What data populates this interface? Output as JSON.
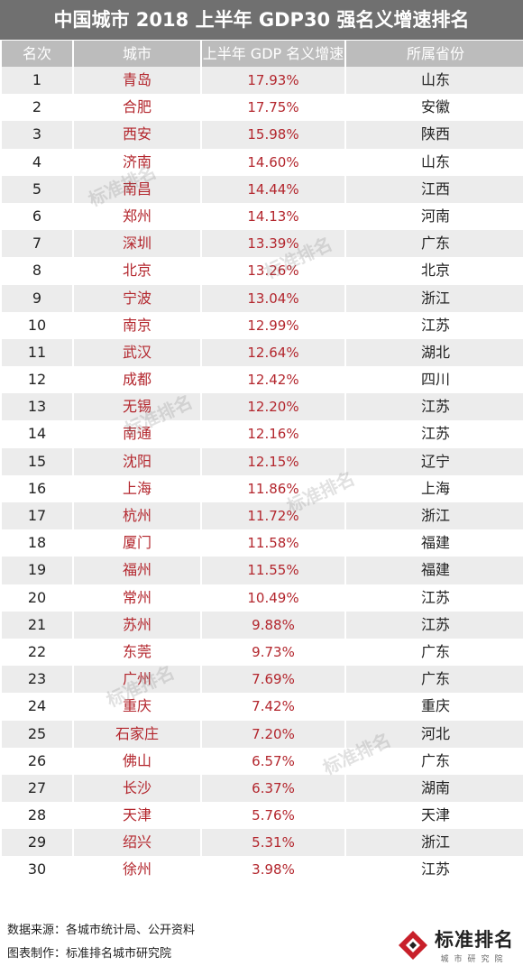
{
  "title": "中国城市 2018 上半年 GDP30 强名义增速排名",
  "headers": [
    "名次",
    "城市",
    "上半年 GDP 名义增速",
    "所属省份"
  ],
  "rows": [
    {
      "rank": "1",
      "city": "青岛",
      "rate": "17.93%",
      "province": "山东"
    },
    {
      "rank": "2",
      "city": "合肥",
      "rate": "17.75%",
      "province": "安徽"
    },
    {
      "rank": "3",
      "city": "西安",
      "rate": "15.98%",
      "province": "陕西"
    },
    {
      "rank": "4",
      "city": "济南",
      "rate": "14.60%",
      "province": "山东"
    },
    {
      "rank": "5",
      "city": "南昌",
      "rate": "14.44%",
      "province": "江西"
    },
    {
      "rank": "6",
      "city": "郑州",
      "rate": "14.13%",
      "province": "河南"
    },
    {
      "rank": "7",
      "city": "深圳",
      "rate": "13.39%",
      "province": "广东"
    },
    {
      "rank": "8",
      "city": "北京",
      "rate": "13.26%",
      "province": "北京"
    },
    {
      "rank": "9",
      "city": "宁波",
      "rate": "13.04%",
      "province": "浙江"
    },
    {
      "rank": "10",
      "city": "南京",
      "rate": "12.99%",
      "province": "江苏"
    },
    {
      "rank": "11",
      "city": "武汉",
      "rate": "12.64%",
      "province": "湖北"
    },
    {
      "rank": "12",
      "city": "成都",
      "rate": "12.42%",
      "province": "四川"
    },
    {
      "rank": "13",
      "city": "无锡",
      "rate": "12.20%",
      "province": "江苏"
    },
    {
      "rank": "14",
      "city": "南通",
      "rate": "12.16%",
      "province": "江苏"
    },
    {
      "rank": "15",
      "city": "沈阳",
      "rate": "12.15%",
      "province": "辽宁"
    },
    {
      "rank": "16",
      "city": "上海",
      "rate": "11.86%",
      "province": "上海"
    },
    {
      "rank": "17",
      "city": "杭州",
      "rate": "11.72%",
      "province": "浙江"
    },
    {
      "rank": "18",
      "city": "厦门",
      "rate": "11.58%",
      "province": "福建"
    },
    {
      "rank": "19",
      "city": "福州",
      "rate": "11.55%",
      "province": "福建"
    },
    {
      "rank": "20",
      "city": "常州",
      "rate": "10.49%",
      "province": "江苏"
    },
    {
      "rank": "21",
      "city": "苏州",
      "rate": "9.88%",
      "province": "江苏"
    },
    {
      "rank": "22",
      "city": "东莞",
      "rate": "9.73%",
      "province": "广东"
    },
    {
      "rank": "23",
      "city": "广州",
      "rate": "7.69%",
      "province": "广东"
    },
    {
      "rank": "24",
      "city": "重庆",
      "rate": "7.42%",
      "province": "重庆"
    },
    {
      "rank": "25",
      "city": "石家庄",
      "rate": "7.20%",
      "province": "河北"
    },
    {
      "rank": "26",
      "city": "佛山",
      "rate": "6.57%",
      "province": "广东"
    },
    {
      "rank": "27",
      "city": "长沙",
      "rate": "6.37%",
      "province": "湖南"
    },
    {
      "rank": "28",
      "city": "天津",
      "rate": "5.76%",
      "province": "天津"
    },
    {
      "rank": "29",
      "city": "绍兴",
      "rate": "5.31%",
      "province": "浙江"
    },
    {
      "rank": "30",
      "city": "徐州",
      "rate": "3.98%",
      "province": "江苏"
    }
  ],
  "footer": {
    "source": "数据来源：各城市统计局、公开资料",
    "maker": "图表制作：标准排名城市研究院"
  },
  "logo": {
    "name": "标准排名",
    "sub": "城市研究院"
  },
  "watermark": "标准排名",
  "colors": {
    "title_bg": "#707070",
    "header_bg": "#bcbcbc",
    "accent_red": "#b3262d",
    "stripe": "#ececec"
  }
}
